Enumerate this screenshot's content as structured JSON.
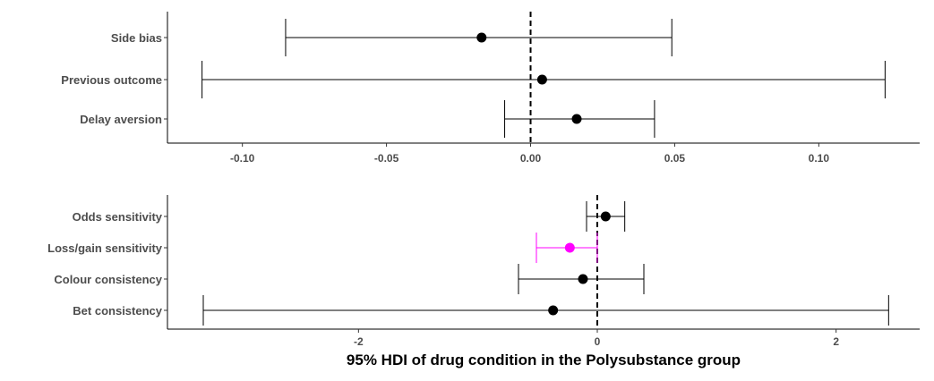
{
  "chart_data": [
    {
      "type": "scatter",
      "subtype": "point-interval",
      "categories": [
        "Side bias",
        "Previous outcome",
        "Delay aversion"
      ],
      "points": [
        {
          "label": "Side bias",
          "estimate": -0.017,
          "lower": -0.085,
          "upper": 0.049,
          "color": "#000000"
        },
        {
          "label": "Previous outcome",
          "estimate": 0.004,
          "lower": -0.114,
          "upper": 0.123,
          "color": "#000000"
        },
        {
          "label": "Delay aversion",
          "estimate": 0.016,
          "lower": -0.009,
          "upper": 0.043,
          "color": "#000000"
        }
      ],
      "xlim": [
        -0.126,
        0.135
      ],
      "xticks": [
        -0.1,
        -0.05,
        0.0,
        0.05,
        0.1
      ],
      "xtick_labels": [
        "-0.10",
        "-0.05",
        "0.00",
        "0.05",
        "0.10"
      ],
      "reference_line": 0,
      "xlabel": "",
      "ylabel": "",
      "grid": false
    },
    {
      "type": "scatter",
      "subtype": "point-interval",
      "categories": [
        "Odds sensitivity",
        "Loss/gain sensitivity",
        "Colour consistency",
        "Bet consistency"
      ],
      "points": [
        {
          "label": "Odds sensitivity",
          "estimate": 0.07,
          "lower": -0.09,
          "upper": 0.23,
          "color": "#000000"
        },
        {
          "label": "Loss/gain sensitivity",
          "estimate": -0.23,
          "lower": -0.51,
          "upper": 0.0,
          "color": "#ff00ff"
        },
        {
          "label": "Colour consistency",
          "estimate": -0.12,
          "lower": -0.66,
          "upper": 0.39,
          "color": "#000000"
        },
        {
          "label": "Bet consistency",
          "estimate": -0.37,
          "lower": -3.3,
          "upper": 2.44,
          "color": "#000000"
        }
      ],
      "xlim": [
        -3.6,
        2.7
      ],
      "xticks": [
        -2,
        0,
        2
      ],
      "xtick_labels": [
        "-2",
        "0",
        "2"
      ],
      "reference_line": 0,
      "xlabel": "95% HDI of drug condition in the Polysubstance group",
      "ylabel": "",
      "grid": false
    }
  ]
}
